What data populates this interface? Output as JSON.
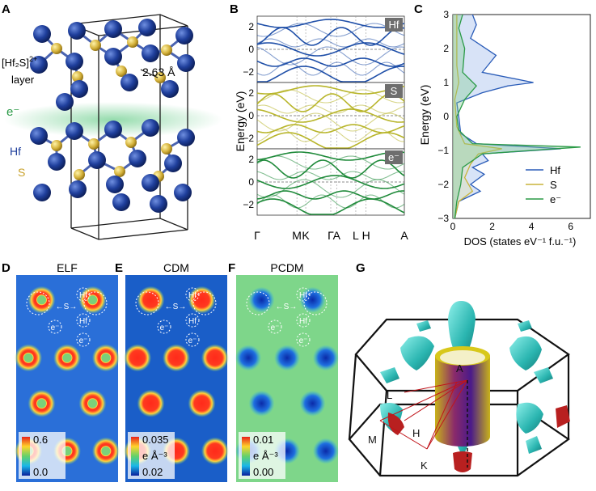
{
  "panels": {
    "A": {
      "letter": "A",
      "layer_label_1": "[Hf₂S]",
      "layer_label_sup": "2+",
      "layer_label_2": "layer",
      "bond_length": "2.63 Å",
      "electron": "e⁻",
      "hf": "Hf",
      "s": "S",
      "colors": {
        "hf": "#1f3f9c",
        "s": "#d4b13a",
        "electron_glow": "#3fbf6a"
      }
    },
    "B": {
      "letter": "B",
      "ylabel": "Energy (eV)",
      "kpoints": [
        "Γ",
        "M",
        "K",
        "Γ",
        "A",
        "L",
        "H",
        "A"
      ],
      "yticks": [
        "2",
        "0",
        "−2"
      ],
      "bands": [
        {
          "tag": "Hf",
          "color": "#1f4fa8"
        },
        {
          "tag": "S",
          "color": "#b8b52a"
        },
        {
          "tag": "e⁻",
          "color": "#1f8a3a"
        }
      ]
    },
    "C": {
      "letter": "C",
      "ylabel": "Energy (eV)",
      "xlabel": "DOS (states eV⁻¹ f.u.⁻¹)",
      "xticks": [
        "0",
        "2",
        "4",
        "6"
      ],
      "yticks": [
        "3",
        "2",
        "1",
        "0",
        "−1",
        "−2",
        "−3"
      ],
      "legend": [
        {
          "label": "Hf",
          "color": "#2a5cb8"
        },
        {
          "label": "S",
          "color": "#c8b43a"
        },
        {
          "label": "e⁻",
          "color": "#2a9a46"
        }
      ]
    },
    "D": {
      "letter": "D",
      "title": "ELF",
      "cb_max": "0.6",
      "cb_min": "0.0",
      "cb_unit": ""
    },
    "E": {
      "letter": "E",
      "title": "CDM",
      "cb_max": "0.035",
      "cb_min": "0.02",
      "cb_unit": "e Å⁻³"
    },
    "F": {
      "letter": "F",
      "title": "PCDM",
      "cb_max": "0.01",
      "cb_min": "0.00",
      "cb_unit": "e Å⁻³"
    },
    "map_labels": {
      "hf": "Hf",
      "s": "S",
      "e": "e⁻"
    },
    "G": {
      "letter": "G",
      "points": {
        "A": "A",
        "L": "L",
        "M": "M",
        "H": "H",
        "K": "K"
      }
    }
  },
  "chart_data": {
    "type": "line",
    "title": "",
    "xlabel": "DOS (states eV⁻¹ f.u.⁻¹)",
    "ylabel": "Energy (eV)",
    "xlim": [
      0,
      7
    ],
    "ylim": [
      -3,
      3
    ],
    "series": [
      {
        "name": "Hf",
        "points": [
          [
            0.1,
            -3
          ],
          [
            0.3,
            -2.5
          ],
          [
            1.4,
            -2.2
          ],
          [
            0.9,
            -2.0
          ],
          [
            1.6,
            -1.7
          ],
          [
            1.0,
            -1.5
          ],
          [
            1.8,
            -1.3
          ],
          [
            1.5,
            -1.1
          ],
          [
            5.5,
            -0.95
          ],
          [
            1.2,
            -0.8
          ],
          [
            0.4,
            -0.5
          ],
          [
            0.3,
            0
          ],
          [
            0.2,
            0.4
          ],
          [
            1.5,
            0.7
          ],
          [
            2.8,
            0.9
          ],
          [
            4.1,
            1.0
          ],
          [
            1.5,
            1.3
          ],
          [
            2.2,
            1.8
          ],
          [
            0.9,
            2.3
          ],
          [
            1.2,
            2.7
          ],
          [
            1.0,
            3
          ]
        ]
      },
      {
        "name": "S",
        "points": [
          [
            0.1,
            -3
          ],
          [
            0.3,
            -2.5
          ],
          [
            1.0,
            -2.2
          ],
          [
            0.6,
            -1.8
          ],
          [
            0.9,
            -1.4
          ],
          [
            1.3,
            -1.1
          ],
          [
            2.5,
            -0.95
          ],
          [
            0.6,
            -0.8
          ],
          [
            0.2,
            -0.3
          ],
          [
            0.1,
            0.5
          ],
          [
            0.3,
            1.0
          ],
          [
            0.2,
            1.5
          ],
          [
            0.2,
            2.5
          ],
          [
            0.2,
            3
          ]
        ]
      },
      {
        "name": "e⁻",
        "points": [
          [
            0.1,
            -3
          ],
          [
            0.2,
            -2.5
          ],
          [
            0.4,
            -2.0
          ],
          [
            0.5,
            -1.5
          ],
          [
            1.5,
            -1.1
          ],
          [
            6.5,
            -0.9
          ],
          [
            1.0,
            -0.8
          ],
          [
            0.3,
            -0.4
          ],
          [
            0.2,
            0
          ],
          [
            0.6,
            0.5
          ],
          [
            1.2,
            0.9
          ],
          [
            0.5,
            1.3
          ],
          [
            0.6,
            2.0
          ],
          [
            0.3,
            2.6
          ],
          [
            0.5,
            3
          ]
        ]
      }
    ]
  }
}
